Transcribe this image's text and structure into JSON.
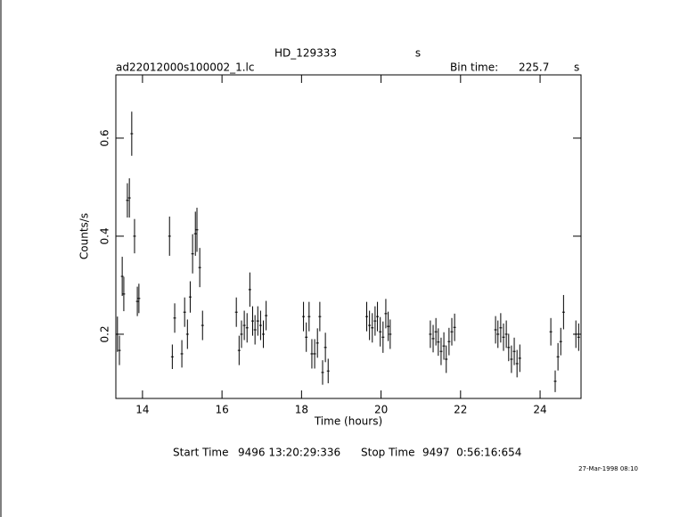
{
  "chart_data": {
    "type": "scatter",
    "title": "HD_129333",
    "title_suffix": "s",
    "subtitle": "ad22012000s100002_1.lc",
    "bin_time_label": "Bin time:",
    "bin_time": "225.7",
    "bin_time_unit": "s",
    "x_label": "Time (hours)",
    "y_label": "Counts/s",
    "start_label": "Start Time",
    "start_value": "9496 13:20:29:336",
    "stop_label": "Stop Time",
    "stop_value": "9497  0:56:16:654",
    "date_stamp": "27-Mar-1998 08:10",
    "xlim": [
      13.33,
      25.03
    ],
    "ylim": [
      0.069,
      0.729
    ],
    "xticks": [
      14,
      16,
      18,
      20,
      22,
      24
    ],
    "yticks": [
      0.2,
      0.4,
      0.6
    ],
    "color": "#000000",
    "x": [
      13.37,
      13.42,
      13.49,
      13.53,
      13.62,
      13.67,
      13.73,
      13.8,
      13.87,
      13.91,
      14.68,
      14.75,
      14.81,
      14.99,
      15.06,
      15.13,
      15.2,
      15.26,
      15.33,
      15.37,
      15.44,
      15.51,
      16.36,
      16.43,
      16.49,
      16.56,
      16.63,
      16.7,
      16.77,
      16.83,
      16.9,
      16.97,
      17.04,
      17.11,
      18.05,
      18.12,
      18.19,
      18.26,
      18.33,
      18.4,
      18.46,
      18.53,
      18.6,
      18.67,
      19.64,
      19.71,
      19.78,
      19.85,
      19.91,
      19.98,
      20.05,
      20.12,
      20.18,
      20.23,
      21.24,
      21.31,
      21.38,
      21.44,
      21.51,
      21.58,
      21.64,
      21.71,
      21.78,
      21.85,
      22.88,
      22.94,
      23.01,
      23.08,
      23.15,
      23.21,
      23.28,
      23.35,
      23.42,
      23.49,
      24.27,
      24.38,
      24.45,
      24.52,
      24.59,
      24.9,
      24.97
    ],
    "values": [
      0.2,
      0.167,
      0.318,
      0.282,
      0.473,
      0.478,
      0.609,
      0.4,
      0.267,
      0.273,
      0.4,
      0.154,
      0.233,
      0.16,
      0.245,
      0.2,
      0.276,
      0.364,
      0.405,
      0.413,
      0.336,
      0.218,
      0.245,
      0.167,
      0.2,
      0.218,
      0.213,
      0.291,
      0.227,
      0.209,
      0.227,
      0.218,
      0.2,
      0.238,
      0.236,
      0.194,
      0.236,
      0.16,
      0.16,
      0.182,
      0.236,
      0.122,
      0.173,
      0.125,
      0.236,
      0.218,
      0.213,
      0.227,
      0.236,
      0.205,
      0.194,
      0.242,
      0.216,
      0.2,
      0.2,
      0.191,
      0.205,
      0.184,
      0.165,
      0.176,
      0.149,
      0.185,
      0.205,
      0.214,
      0.209,
      0.2,
      0.213,
      0.194,
      0.2,
      0.173,
      0.149,
      0.165,
      0.14,
      0.151,
      0.205,
      0.104,
      0.154,
      0.185,
      0.245,
      0.2,
      0.194
    ],
    "errors": [
      0.036,
      0.03,
      0.04,
      0.035,
      0.035,
      0.04,
      0.045,
      0.035,
      0.03,
      0.03,
      0.04,
      0.025,
      0.03,
      0.028,
      0.03,
      0.03,
      0.032,
      0.04,
      0.045,
      0.045,
      0.04,
      0.03,
      0.03,
      0.03,
      0.028,
      0.03,
      0.03,
      0.035,
      0.03,
      0.03,
      0.03,
      0.03,
      0.028,
      0.03,
      0.03,
      0.03,
      0.03,
      0.03,
      0.03,
      0.03,
      0.03,
      0.025,
      0.03,
      0.025,
      0.03,
      0.03,
      0.03,
      0.03,
      0.03,
      0.03,
      0.032,
      0.03,
      0.03,
      0.03,
      0.028,
      0.028,
      0.028,
      0.028,
      0.028,
      0.028,
      0.028,
      0.028,
      0.028,
      0.028,
      0.028,
      0.028,
      0.03,
      0.028,
      0.028,
      0.028,
      0.028,
      0.028,
      0.028,
      0.028,
      0.028,
      0.022,
      0.028,
      0.028,
      0.035,
      0.028,
      0.028
    ]
  }
}
